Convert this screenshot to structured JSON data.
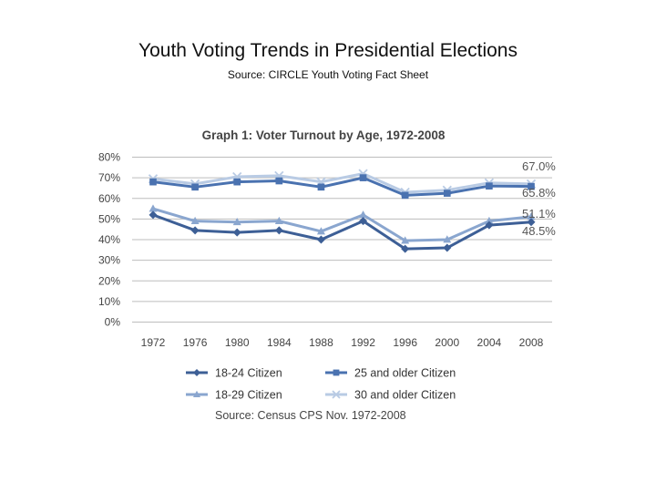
{
  "slide": {
    "title": "Youth Voting Trends in Presidential Elections",
    "subtitle": "Source:  CIRCLE Youth Voting Fact Sheet"
  },
  "chart_data": {
    "type": "line",
    "title": "Graph 1: Voter Turnout by Age, 1972-2008",
    "source": "Source: Census CPS Nov. 1972-2008",
    "categories": [
      "1972",
      "1976",
      "1980",
      "1984",
      "1988",
      "1992",
      "1996",
      "2000",
      "2004",
      "2008"
    ],
    "yticks": [
      "0%",
      "10%",
      "20%",
      "30%",
      "40%",
      "50%",
      "60%",
      "70%",
      "80%"
    ],
    "ylim": [
      0,
      80
    ],
    "grid": true,
    "legend_position": "bottom",
    "series": [
      {
        "name": "18-24 Citizen",
        "color": "#3d5f96",
        "marker": "diamond",
        "values": [
          52,
          44.5,
          43.5,
          44.5,
          40,
          49,
          35.5,
          36,
          47,
          48.5
        ]
      },
      {
        "name": "25 and older Citizen",
        "color": "#4a72b0",
        "marker": "square",
        "values": [
          68,
          65.5,
          68,
          68.5,
          65.5,
          70,
          61.5,
          62.5,
          66,
          65.8
        ]
      },
      {
        "name": "18-29 Citizen",
        "color": "#8aa6cf",
        "marker": "triangle",
        "values": [
          55,
          49,
          48.5,
          49,
          44,
          52,
          39.5,
          40,
          49,
          51.1
        ]
      },
      {
        "name": "30 and older Citizen",
        "color": "#b9cbe4",
        "marker": "x",
        "values": [
          69.5,
          67,
          70.5,
          71,
          68,
          72,
          63,
          64,
          67.5,
          67.0
        ]
      }
    ],
    "end_labels": [
      {
        "text": "67.0%",
        "series": 3
      },
      {
        "text": "65.8%",
        "series": 1
      },
      {
        "text": "51.1%",
        "series": 2
      },
      {
        "text": "48.5%",
        "series": 0
      }
    ],
    "legend_rows": [
      [
        0,
        1
      ],
      [
        2,
        3
      ]
    ]
  }
}
